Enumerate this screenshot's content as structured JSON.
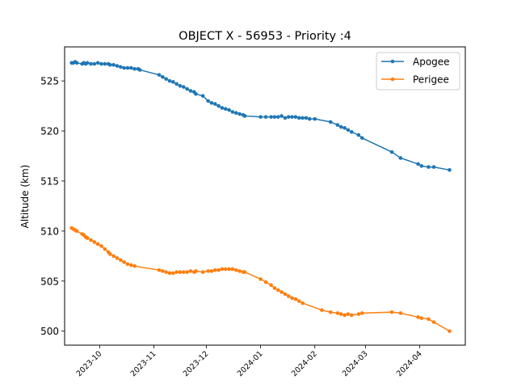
{
  "chart_data": {
    "type": "line",
    "title": "OBJECT X - 56953 - Priority :4",
    "xlabel": "",
    "ylabel": "Altitude (km)",
    "xlim": [
      "2023-09-11",
      "2024-04-27"
    ],
    "ylim": [
      498.6,
      528.4
    ],
    "xticks": [
      "2023-10-01",
      "2023-11-01",
      "2023-12-01",
      "2024-01-01",
      "2024-02-01",
      "2024-03-01",
      "2024-04-01"
    ],
    "xtick_labels": [
      "2023-10",
      "2023-11",
      "2023-12",
      "2024-01",
      "2024-02",
      "2024-03",
      "2024-04"
    ],
    "yticks": [
      500,
      505,
      510,
      515,
      520,
      525
    ],
    "ytick_labels": [
      "500",
      "505",
      "510",
      "515",
      "520",
      "525"
    ],
    "grid": false,
    "legend": "top-right",
    "series": [
      {
        "name": "Apogee",
        "color": "#1f77b4",
        "points": [
          [
            "2023-09-15",
            526.8
          ],
          [
            "2023-09-16",
            526.8
          ],
          [
            "2023-09-17",
            526.9
          ],
          [
            "2023-09-18",
            526.8
          ],
          [
            "2023-09-21",
            526.7
          ],
          [
            "2023-09-22",
            526.8
          ],
          [
            "2023-09-23",
            526.7
          ],
          [
            "2023-09-24",
            526.8
          ],
          [
            "2023-09-26",
            526.7
          ],
          [
            "2023-09-28",
            526.7
          ],
          [
            "2023-09-30",
            526.8
          ],
          [
            "2023-10-02",
            526.7
          ],
          [
            "2023-10-04",
            526.7
          ],
          [
            "2023-10-06",
            526.7
          ],
          [
            "2023-10-07",
            526.6
          ],
          [
            "2023-10-09",
            526.6
          ],
          [
            "2023-10-11",
            526.5
          ],
          [
            "2023-10-13",
            526.4
          ],
          [
            "2023-10-15",
            526.3
          ],
          [
            "2023-10-17",
            526.3
          ],
          [
            "2023-10-19",
            526.3
          ],
          [
            "2023-10-21",
            526.2
          ],
          [
            "2023-10-23",
            526.2
          ],
          [
            "2023-10-24",
            526.1
          ],
          [
            "2023-11-04",
            525.6
          ],
          [
            "2023-11-06",
            525.4
          ],
          [
            "2023-11-08",
            525.2
          ],
          [
            "2023-11-10",
            525.0
          ],
          [
            "2023-11-12",
            524.9
          ],
          [
            "2023-11-14",
            524.7
          ],
          [
            "2023-11-16",
            524.5
          ],
          [
            "2023-11-18",
            524.4
          ],
          [
            "2023-11-20",
            524.2
          ],
          [
            "2023-11-22",
            524.0
          ],
          [
            "2023-11-24",
            523.9
          ],
          [
            "2023-11-25",
            523.7
          ],
          [
            "2023-11-29",
            523.5
          ],
          [
            "2023-12-02",
            523.0
          ],
          [
            "2023-12-04",
            522.8
          ],
          [
            "2023-12-06",
            522.7
          ],
          [
            "2023-12-08",
            522.5
          ],
          [
            "2023-12-10",
            522.3
          ],
          [
            "2023-12-12",
            522.2
          ],
          [
            "2023-12-14",
            522.1
          ],
          [
            "2023-12-16",
            521.9
          ],
          [
            "2023-12-18",
            521.8
          ],
          [
            "2023-12-20",
            521.7
          ],
          [
            "2023-12-22",
            521.6
          ],
          [
            "2023-12-23",
            521.5
          ],
          [
            "2024-01-01",
            521.4
          ],
          [
            "2024-01-04",
            521.4
          ],
          [
            "2024-01-07",
            521.4
          ],
          [
            "2024-01-09",
            521.4
          ],
          [
            "2024-01-11",
            521.4
          ],
          [
            "2024-01-13",
            521.5
          ],
          [
            "2024-01-15",
            521.3
          ],
          [
            "2024-01-17",
            521.4
          ],
          [
            "2024-01-19",
            521.4
          ],
          [
            "2024-01-21",
            521.4
          ],
          [
            "2024-01-23",
            521.3
          ],
          [
            "2024-01-25",
            521.3
          ],
          [
            "2024-01-27",
            521.3
          ],
          [
            "2024-01-29",
            521.2
          ],
          [
            "2024-02-01",
            521.2
          ],
          [
            "2024-02-10",
            520.9
          ],
          [
            "2024-02-14",
            520.6
          ],
          [
            "2024-02-16",
            520.4
          ],
          [
            "2024-02-18",
            520.3
          ],
          [
            "2024-02-20",
            520.1
          ],
          [
            "2024-02-22",
            519.9
          ],
          [
            "2024-02-26",
            519.6
          ],
          [
            "2024-02-28",
            519.3
          ],
          [
            "2024-03-16",
            517.9
          ],
          [
            "2024-03-21",
            517.3
          ],
          [
            "2024-03-31",
            516.7
          ],
          [
            "2024-04-02",
            516.5
          ],
          [
            "2024-04-06",
            516.4
          ],
          [
            "2024-04-09",
            516.4
          ],
          [
            "2024-04-18",
            516.1
          ]
        ]
      },
      {
        "name": "Perigee",
        "color": "#ff7f0e",
        "points": [
          [
            "2023-09-15",
            510.3
          ],
          [
            "2023-09-16",
            510.2
          ],
          [
            "2023-09-17",
            510.1
          ],
          [
            "2023-09-18",
            510.0
          ],
          [
            "2023-09-21",
            509.7
          ],
          [
            "2023-09-22",
            509.6
          ],
          [
            "2023-09-23",
            509.4
          ],
          [
            "2023-09-24",
            509.3
          ],
          [
            "2023-09-26",
            509.1
          ],
          [
            "2023-09-28",
            508.9
          ],
          [
            "2023-09-30",
            508.7
          ],
          [
            "2023-10-02",
            508.5
          ],
          [
            "2023-10-04",
            508.2
          ],
          [
            "2023-10-06",
            507.9
          ],
          [
            "2023-10-07",
            507.7
          ],
          [
            "2023-10-09",
            507.5
          ],
          [
            "2023-10-11",
            507.3
          ],
          [
            "2023-10-13",
            507.1
          ],
          [
            "2023-10-15",
            506.9
          ],
          [
            "2023-10-17",
            506.7
          ],
          [
            "2023-10-19",
            506.6
          ],
          [
            "2023-10-21",
            506.5
          ],
          [
            "2023-11-04",
            506.1
          ],
          [
            "2023-11-06",
            506.0
          ],
          [
            "2023-11-08",
            505.9
          ],
          [
            "2023-11-10",
            505.8
          ],
          [
            "2023-11-12",
            505.8
          ],
          [
            "2023-11-14",
            505.9
          ],
          [
            "2023-11-16",
            505.9
          ],
          [
            "2023-11-18",
            505.9
          ],
          [
            "2023-11-20",
            505.9
          ],
          [
            "2023-11-22",
            506.0
          ],
          [
            "2023-11-24",
            505.9
          ],
          [
            "2023-11-25",
            506.0
          ],
          [
            "2023-11-29",
            505.9
          ],
          [
            "2023-12-02",
            506.0
          ],
          [
            "2023-12-04",
            506.0
          ],
          [
            "2023-12-06",
            506.1
          ],
          [
            "2023-12-08",
            506.1
          ],
          [
            "2023-12-10",
            506.2
          ],
          [
            "2023-12-12",
            506.2
          ],
          [
            "2023-12-14",
            506.2
          ],
          [
            "2023-12-16",
            506.2
          ],
          [
            "2023-12-18",
            506.1
          ],
          [
            "2023-12-20",
            506.0
          ],
          [
            "2023-12-22",
            505.9
          ],
          [
            "2023-12-23",
            505.9
          ],
          [
            "2024-01-01",
            505.2
          ],
          [
            "2024-01-04",
            504.9
          ],
          [
            "2024-01-07",
            504.6
          ],
          [
            "2024-01-09",
            504.3
          ],
          [
            "2024-01-11",
            504.1
          ],
          [
            "2024-01-13",
            503.9
          ],
          [
            "2024-01-15",
            503.7
          ],
          [
            "2024-01-17",
            503.5
          ],
          [
            "2024-01-19",
            503.3
          ],
          [
            "2024-01-21",
            503.2
          ],
          [
            "2024-01-23",
            503.0
          ],
          [
            "2024-01-25",
            502.8
          ],
          [
            "2024-02-05",
            502.1
          ],
          [
            "2024-02-10",
            501.9
          ],
          [
            "2024-02-14",
            501.8
          ],
          [
            "2024-02-16",
            501.7
          ],
          [
            "2024-02-18",
            501.6
          ],
          [
            "2024-02-20",
            501.7
          ],
          [
            "2024-02-22",
            501.6
          ],
          [
            "2024-02-26",
            501.7
          ],
          [
            "2024-02-28",
            501.8
          ],
          [
            "2024-03-16",
            501.9
          ],
          [
            "2024-03-21",
            501.8
          ],
          [
            "2024-03-31",
            501.4
          ],
          [
            "2024-04-02",
            501.3
          ],
          [
            "2024-04-06",
            501.2
          ],
          [
            "2024-04-09",
            500.9
          ],
          [
            "2024-04-18",
            500.0
          ]
        ]
      }
    ]
  }
}
